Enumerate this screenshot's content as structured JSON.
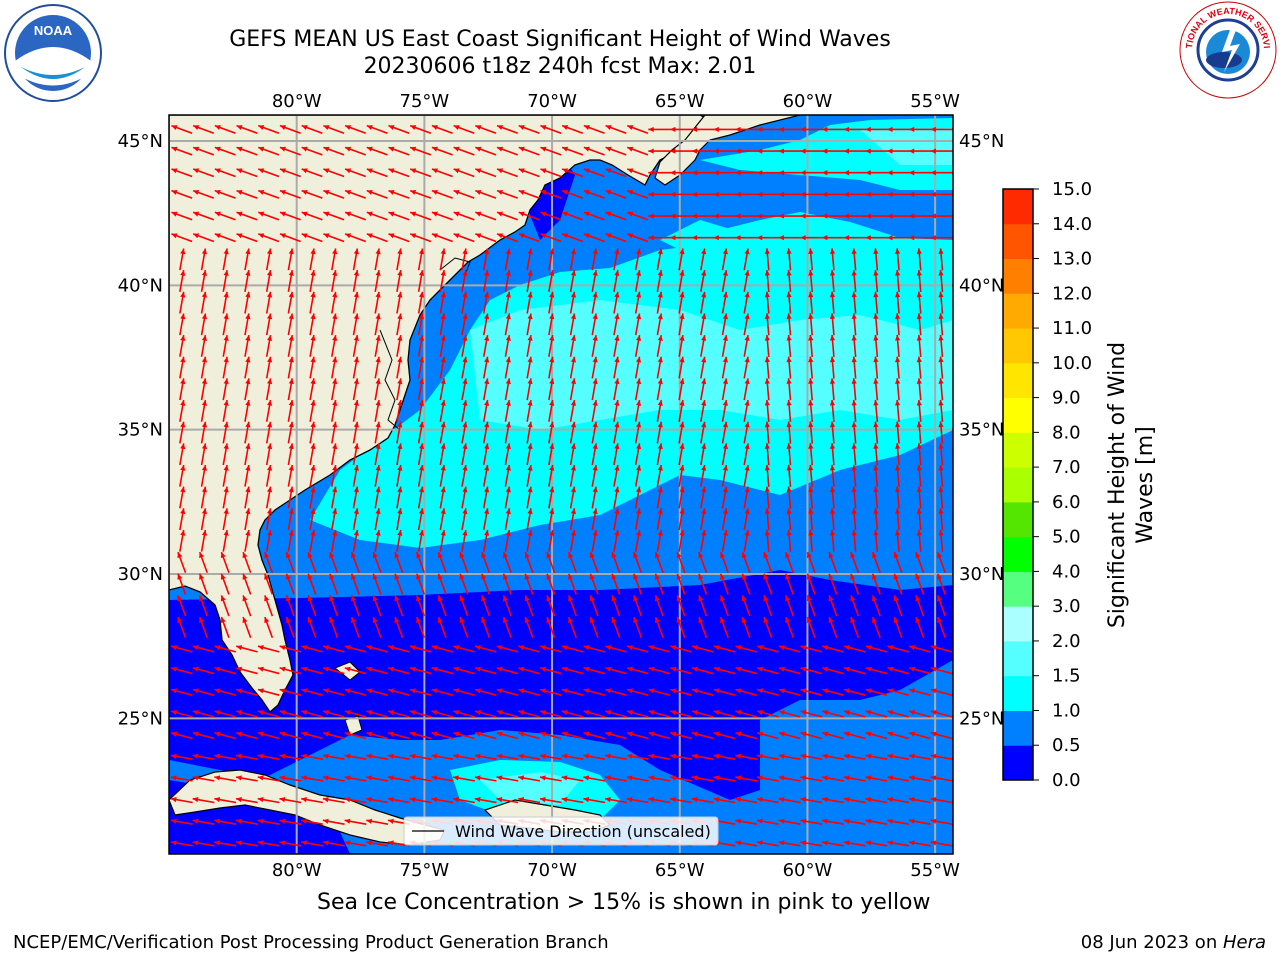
{
  "header": {
    "title_line1": "GEFS MEAN US East Coast Significant Height of Wind Waves",
    "title_line2": "20230606 t18z 240h fcst   Max: 2.01"
  },
  "logos": {
    "left": {
      "name": "noaa-logo",
      "text": "NOAA"
    },
    "right": {
      "name": "national-weather-service-logo",
      "text": "NATIONAL WEATHER SERVICE"
    }
  },
  "map": {
    "projection": "Plate Carree",
    "lon_range": [
      -85,
      -54.3
    ],
    "lat_range": [
      20.3,
      45.9
    ],
    "lon_ticks": [
      "80°W",
      "75°W",
      "70°W",
      "65°W",
      "60°W",
      "55°W"
    ],
    "lat_ticks": [
      "45°N",
      "40°N",
      "35°N",
      "30°N",
      "25°N"
    ],
    "land_color": "#efefdb",
    "legend_text": "Wind Wave Direction (unscaled)",
    "arrow_color": "#ff0000"
  },
  "colorbar": {
    "label": "Significant Height of Wind Waves [m]",
    "ticks": [
      "0.0",
      "0.5",
      "1.0",
      "1.5",
      "2.0",
      "3.0",
      "4.0",
      "5.0",
      "6.0",
      "7.0",
      "8.0",
      "9.0",
      "10.0",
      "11.0",
      "12.0",
      "13.0",
      "14.0",
      "15.0"
    ],
    "colors": [
      "#0000ff",
      "#0080ff",
      "#00ffff",
      "#55ffff",
      "#aaffff",
      "#55ff80",
      "#00ff00",
      "#55e600",
      "#aaff00",
      "#ccff00",
      "#ffff00",
      "#ffe600",
      "#ffc800",
      "#ffaa00",
      "#ff8000",
      "#ff5500",
      "#ff2a00",
      "#ff0000"
    ]
  },
  "caption": "Sea Ice Concentration > 15% is shown in pink to yellow",
  "footer": {
    "left": "NCEP/EMC/Verification Post Processing Product Generation Branch",
    "right_prefix": "08 Jun 2023 on ",
    "right_host": "Hera"
  }
}
